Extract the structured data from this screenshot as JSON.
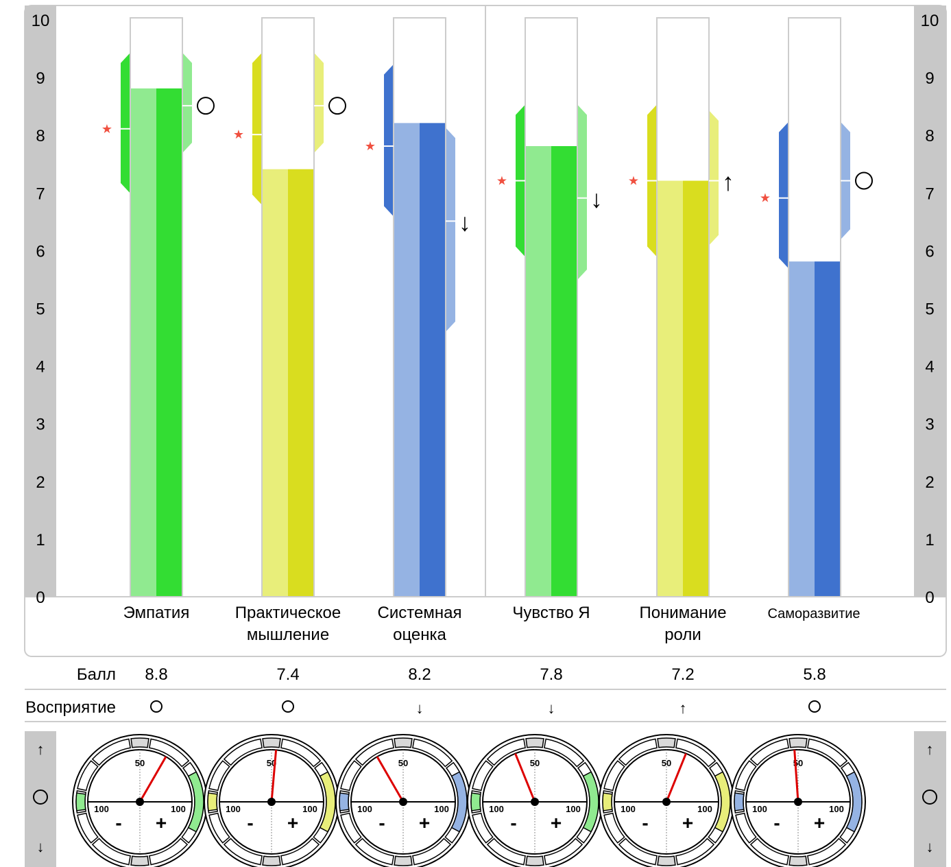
{
  "chart_data": {
    "type": "bar",
    "y_axis": {
      "min": 0,
      "max": 10,
      "ticks": [
        "0",
        "1",
        "2",
        "3",
        "4",
        "5",
        "6",
        "7",
        "8",
        "9",
        "10"
      ]
    },
    "categories": [
      {
        "label_lines": [
          "Эмпатия"
        ],
        "score": 8.8,
        "score_label": "8.8",
        "perception": "○",
        "star_value": 8.1,
        "range_left": [
          7.1,
          9.3
        ],
        "range_right": [
          7.8,
          9.3
        ],
        "perception_mark": 8.5,
        "gauge_angle_deg": 30,
        "color": "green"
      },
      {
        "label_lines": [
          "Практическое",
          "мышление"
        ],
        "score": 7.4,
        "score_label": "7.4",
        "perception": "○",
        "star_value": 8.0,
        "range_left": [
          6.9,
          9.3
        ],
        "range_right": [
          7.8,
          9.3
        ],
        "perception_mark": 8.5,
        "gauge_angle_deg": 5,
        "color": "yellow"
      },
      {
        "label_lines": [
          "Системная",
          "оценка"
        ],
        "score": 8.2,
        "score_label": "8.2",
        "perception": "↓",
        "star_value": 7.8,
        "range_left": [
          6.7,
          9.1
        ],
        "range_right": [
          4.7,
          8.0
        ],
        "perception_mark": 6.5,
        "gauge_angle_deg": -30,
        "color": "blue"
      },
      {
        "label_lines": [
          "Чувство Я"
        ],
        "score": 7.8,
        "score_label": "7.8",
        "perception": "↓",
        "star_value": 7.2,
        "range_left": [
          6.0,
          8.4
        ],
        "range_right": [
          5.6,
          8.4
        ],
        "perception_mark": 6.9,
        "gauge_angle_deg": -22,
        "color": "green"
      },
      {
        "label_lines": [
          "Понимание",
          "роли"
        ],
        "score": 7.2,
        "score_label": "7.2",
        "perception": "↑",
        "star_value": 7.2,
        "range_left": [
          6.0,
          8.4
        ],
        "range_right": [
          6.2,
          8.3
        ],
        "perception_mark": 7.2,
        "gauge_angle_deg": 22,
        "color": "yellow"
      },
      {
        "label_lines": [
          "Саморазвитие"
        ],
        "score": 5.8,
        "score_label": "5.8",
        "perception": "○",
        "star_value": 6.9,
        "range_left": [
          5.8,
          8.1
        ],
        "range_right": [
          6.3,
          8.1
        ],
        "perception_mark": 7.2,
        "gauge_angle_deg": -4,
        "color": "blue"
      }
    ],
    "perception_symbols": {
      "up": "↑",
      "neutral": "○",
      "down": "↓"
    },
    "row_labels": {
      "score": "Балл",
      "perception": "Восприятие"
    },
    "gauge_labels": {
      "top": "50",
      "left": "100",
      "right": "100",
      "minus": "-",
      "plus": "+"
    },
    "side_legend": [
      "↑",
      "○",
      "↓"
    ],
    "palette": {
      "green": {
        "dark": "#33dd33",
        "light": "#90ea90"
      },
      "yellow": {
        "dark": "#d9dd1f",
        "light": "#e8ee7a"
      },
      "blue": {
        "dark": "#3f72ce",
        "light": "#95b3e3"
      },
      "star": "#f05040",
      "needle": "#dd0000",
      "axis_band": "#c8c8c8",
      "frame": "#cccccc"
    }
  }
}
